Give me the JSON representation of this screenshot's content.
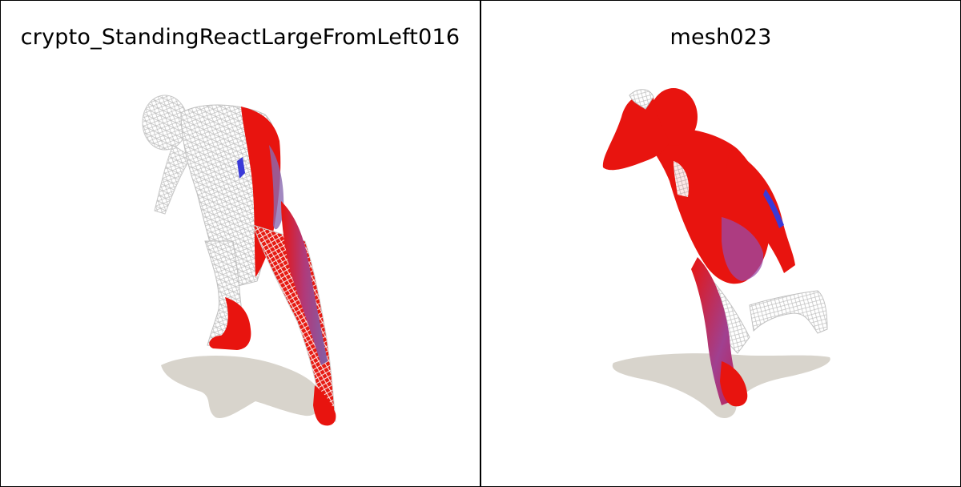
{
  "panels": [
    {
      "title": "crypto_StandingReactLargeFromLeft016"
    },
    {
      "title": "mesh023"
    }
  ],
  "colors": {
    "background": "#ffffff",
    "border": "#000000",
    "mesh_red": "#e8140f",
    "mesh_purple": "#8a4aa0",
    "mesh_blue": "#3a3ad8",
    "wireframe": "#d9d9d9",
    "shadow": "#d8d4cc"
  }
}
